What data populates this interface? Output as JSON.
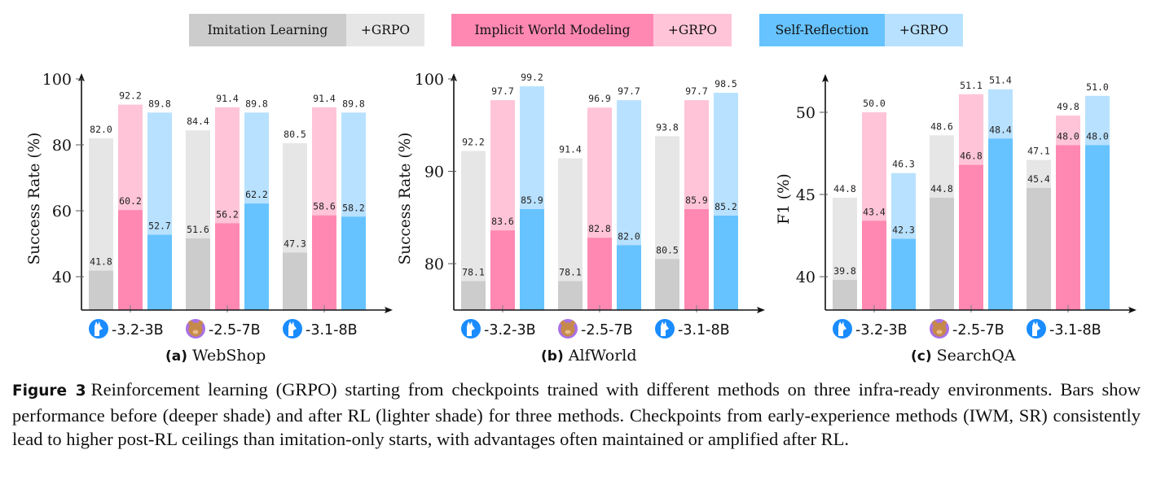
{
  "legend": {
    "items": [
      {
        "label": "Imitation Learning",
        "rl_label": "+GRPO",
        "base_color": "#cccccc",
        "rl_color": "#e6e6e6"
      },
      {
        "label": "Implicit World Modeling",
        "rl_label": "+GRPO",
        "base_color": "#ff88b2",
        "rl_color": "#ffc4d8"
      },
      {
        "label": "Self-Reflection",
        "rl_label": "+GRPO",
        "base_color": "#66c3ff",
        "rl_color": "#b8e1ff"
      }
    ]
  },
  "chart_data": [
    {
      "type": "bar",
      "subtitle_tag": "(a)",
      "title": "WebShop",
      "xlabel": "",
      "ylabel": "Success Rate (%)",
      "ylim": [
        30,
        101
      ],
      "yticks": [
        40,
        60,
        80,
        100
      ],
      "categories": [
        "-3.2-3B",
        "-2.5-7B",
        "-3.1-8B"
      ],
      "category_icons": [
        "llama-icon",
        "qwen-bear-icon",
        "llama-icon"
      ],
      "series": [
        {
          "name": "Imitation Learning",
          "before": [
            41.8,
            51.6,
            47.3
          ],
          "after": [
            82.0,
            84.4,
            80.5
          ]
        },
        {
          "name": "Implicit World Modeling",
          "before": [
            60.2,
            56.2,
            58.6
          ],
          "after": [
            92.2,
            91.4,
            91.4
          ]
        },
        {
          "name": "Self-Reflection",
          "before": [
            52.7,
            62.2,
            58.2
          ],
          "after": [
            89.8,
            89.8,
            89.8
          ]
        }
      ]
    },
    {
      "type": "bar",
      "subtitle_tag": "(b)",
      "title": "AlfWorld",
      "xlabel": "",
      "ylabel": "Success Rate (%)",
      "ylim": [
        75,
        100.3
      ],
      "yticks": [
        80,
        90,
        100
      ],
      "categories": [
        "-3.2-3B",
        "-2.5-7B",
        "-3.1-8B"
      ],
      "category_icons": [
        "llama-icon",
        "qwen-bear-icon",
        "llama-icon"
      ],
      "series": [
        {
          "name": "Imitation Learning",
          "before": [
            78.1,
            78.1,
            80.5
          ],
          "after": [
            92.2,
            91.4,
            93.8
          ]
        },
        {
          "name": "Implicit World Modeling",
          "before": [
            83.6,
            82.8,
            85.9
          ],
          "after": [
            97.7,
            96.9,
            97.7
          ]
        },
        {
          "name": "Self-Reflection",
          "before": [
            85.9,
            82.0,
            85.2
          ],
          "after": [
            99.2,
            97.7,
            98.5
          ]
        }
      ]
    },
    {
      "type": "bar",
      "subtitle_tag": "(c)",
      "title": "SearchQA",
      "xlabel": "",
      "ylabel": "F1 (%)",
      "ylim": [
        38,
        52
      ],
      "yticks": [
        40,
        45,
        50
      ],
      "categories": [
        "-3.2-3B",
        "-2.5-7B",
        "-3.1-8B"
      ],
      "category_icons": [
        "llama-icon",
        "qwen-bear-icon",
        "llama-icon"
      ],
      "series": [
        {
          "name": "Imitation Learning",
          "before": [
            39.8,
            44.8,
            45.4
          ],
          "after": [
            44.8,
            48.6,
            47.1
          ]
        },
        {
          "name": "Implicit World Modeling",
          "before": [
            43.4,
            46.8,
            48.0
          ],
          "after": [
            50.0,
            51.1,
            49.8
          ]
        },
        {
          "name": "Self-Reflection",
          "before": [
            42.3,
            48.4,
            48.0
          ],
          "after": [
            46.3,
            51.4,
            51.0
          ]
        }
      ]
    }
  ],
  "caption": {
    "label": "Figure 3",
    "text": "Reinforcement learning (GRPO) starting from checkpoints trained with different methods on three infra-ready environments. Bars show performance before (deeper shade) and after RL (lighter shade) for three methods. Checkpoints from early-experience methods (IWM, SR) consistently lead to higher post-RL ceilings than imitation-only starts, with advantages often maintained or amplified after RL."
  }
}
